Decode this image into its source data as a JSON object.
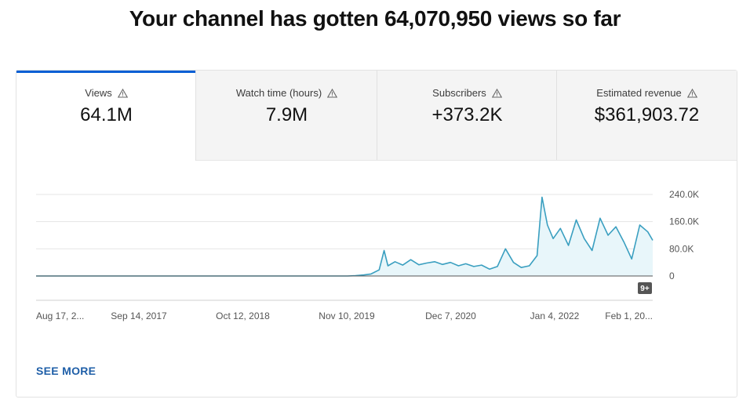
{
  "headline": "Your channel has gotten 64,070,950 views so far",
  "tabs": [
    {
      "label": "Views",
      "value": "64.1M",
      "icon": "warning-icon",
      "active": true
    },
    {
      "label": "Watch time (hours)",
      "value": "7.9M",
      "icon": "warning-icon",
      "active": false
    },
    {
      "label": "Subscribers",
      "value": "+373.2K",
      "icon": "warning-icon",
      "active": false
    },
    {
      "label": "Estimated revenue",
      "value": "$361,903.72",
      "icon": "warning-icon",
      "active": false
    }
  ],
  "colors": {
    "accent": "#065fd4",
    "line": "#3a9fc0",
    "fill": "#e8f6fa",
    "link": "#1f5fa8"
  },
  "chart_data": {
    "type": "area",
    "series_name": "Views",
    "y_ticks": [
      "240.0K",
      "160.0K",
      "80.0K",
      "0"
    ],
    "ylim": [
      0,
      270000
    ],
    "x_ticks": [
      "Aug 17, 2...",
      "Sep 14, 2017",
      "Oct 12, 2018",
      "Nov 10, 2019",
      "Dec 7, 2020",
      "Jan 4, 2022",
      "Feb 1, 20..."
    ],
    "x_start": "2016-08-17",
    "x_end": "2023-02-20",
    "points": [
      [
        "2016-08-17",
        0
      ],
      [
        "2019-12-01",
        0
      ],
      [
        "2020-01-01",
        1000
      ],
      [
        "2020-02-01",
        3000
      ],
      [
        "2020-03-01",
        6000
      ],
      [
        "2020-04-01",
        18000
      ],
      [
        "2020-04-20",
        75000
      ],
      [
        "2020-05-05",
        30000
      ],
      [
        "2020-06-01",
        42000
      ],
      [
        "2020-07-01",
        32000
      ],
      [
        "2020-08-01",
        48000
      ],
      [
        "2020-09-01",
        33000
      ],
      [
        "2020-10-01",
        38000
      ],
      [
        "2020-11-01",
        42000
      ],
      [
        "2020-12-01",
        34000
      ],
      [
        "2021-01-01",
        40000
      ],
      [
        "2021-02-01",
        30000
      ],
      [
        "2021-03-01",
        36000
      ],
      [
        "2021-04-01",
        28000
      ],
      [
        "2021-05-01",
        32000
      ],
      [
        "2021-06-01",
        20000
      ],
      [
        "2021-07-01",
        28000
      ],
      [
        "2021-08-01",
        80000
      ],
      [
        "2021-09-01",
        40000
      ],
      [
        "2021-10-01",
        25000
      ],
      [
        "2021-11-01",
        30000
      ],
      [
        "2021-12-01",
        60000
      ],
      [
        "2021-12-20",
        232000
      ],
      [
        "2022-01-10",
        150000
      ],
      [
        "2022-02-01",
        110000
      ],
      [
        "2022-03-01",
        140000
      ],
      [
        "2022-04-01",
        90000
      ],
      [
        "2022-05-01",
        165000
      ],
      [
        "2022-06-01",
        110000
      ],
      [
        "2022-07-01",
        75000
      ],
      [
        "2022-08-01",
        170000
      ],
      [
        "2022-09-01",
        120000
      ],
      [
        "2022-10-01",
        145000
      ],
      [
        "2022-11-01",
        100000
      ],
      [
        "2022-12-01",
        50000
      ],
      [
        "2023-01-01",
        150000
      ],
      [
        "2023-02-01",
        130000
      ],
      [
        "2023-02-20",
        105000
      ]
    ],
    "badge": "9+",
    "grid": true
  },
  "see_more": "SEE MORE"
}
